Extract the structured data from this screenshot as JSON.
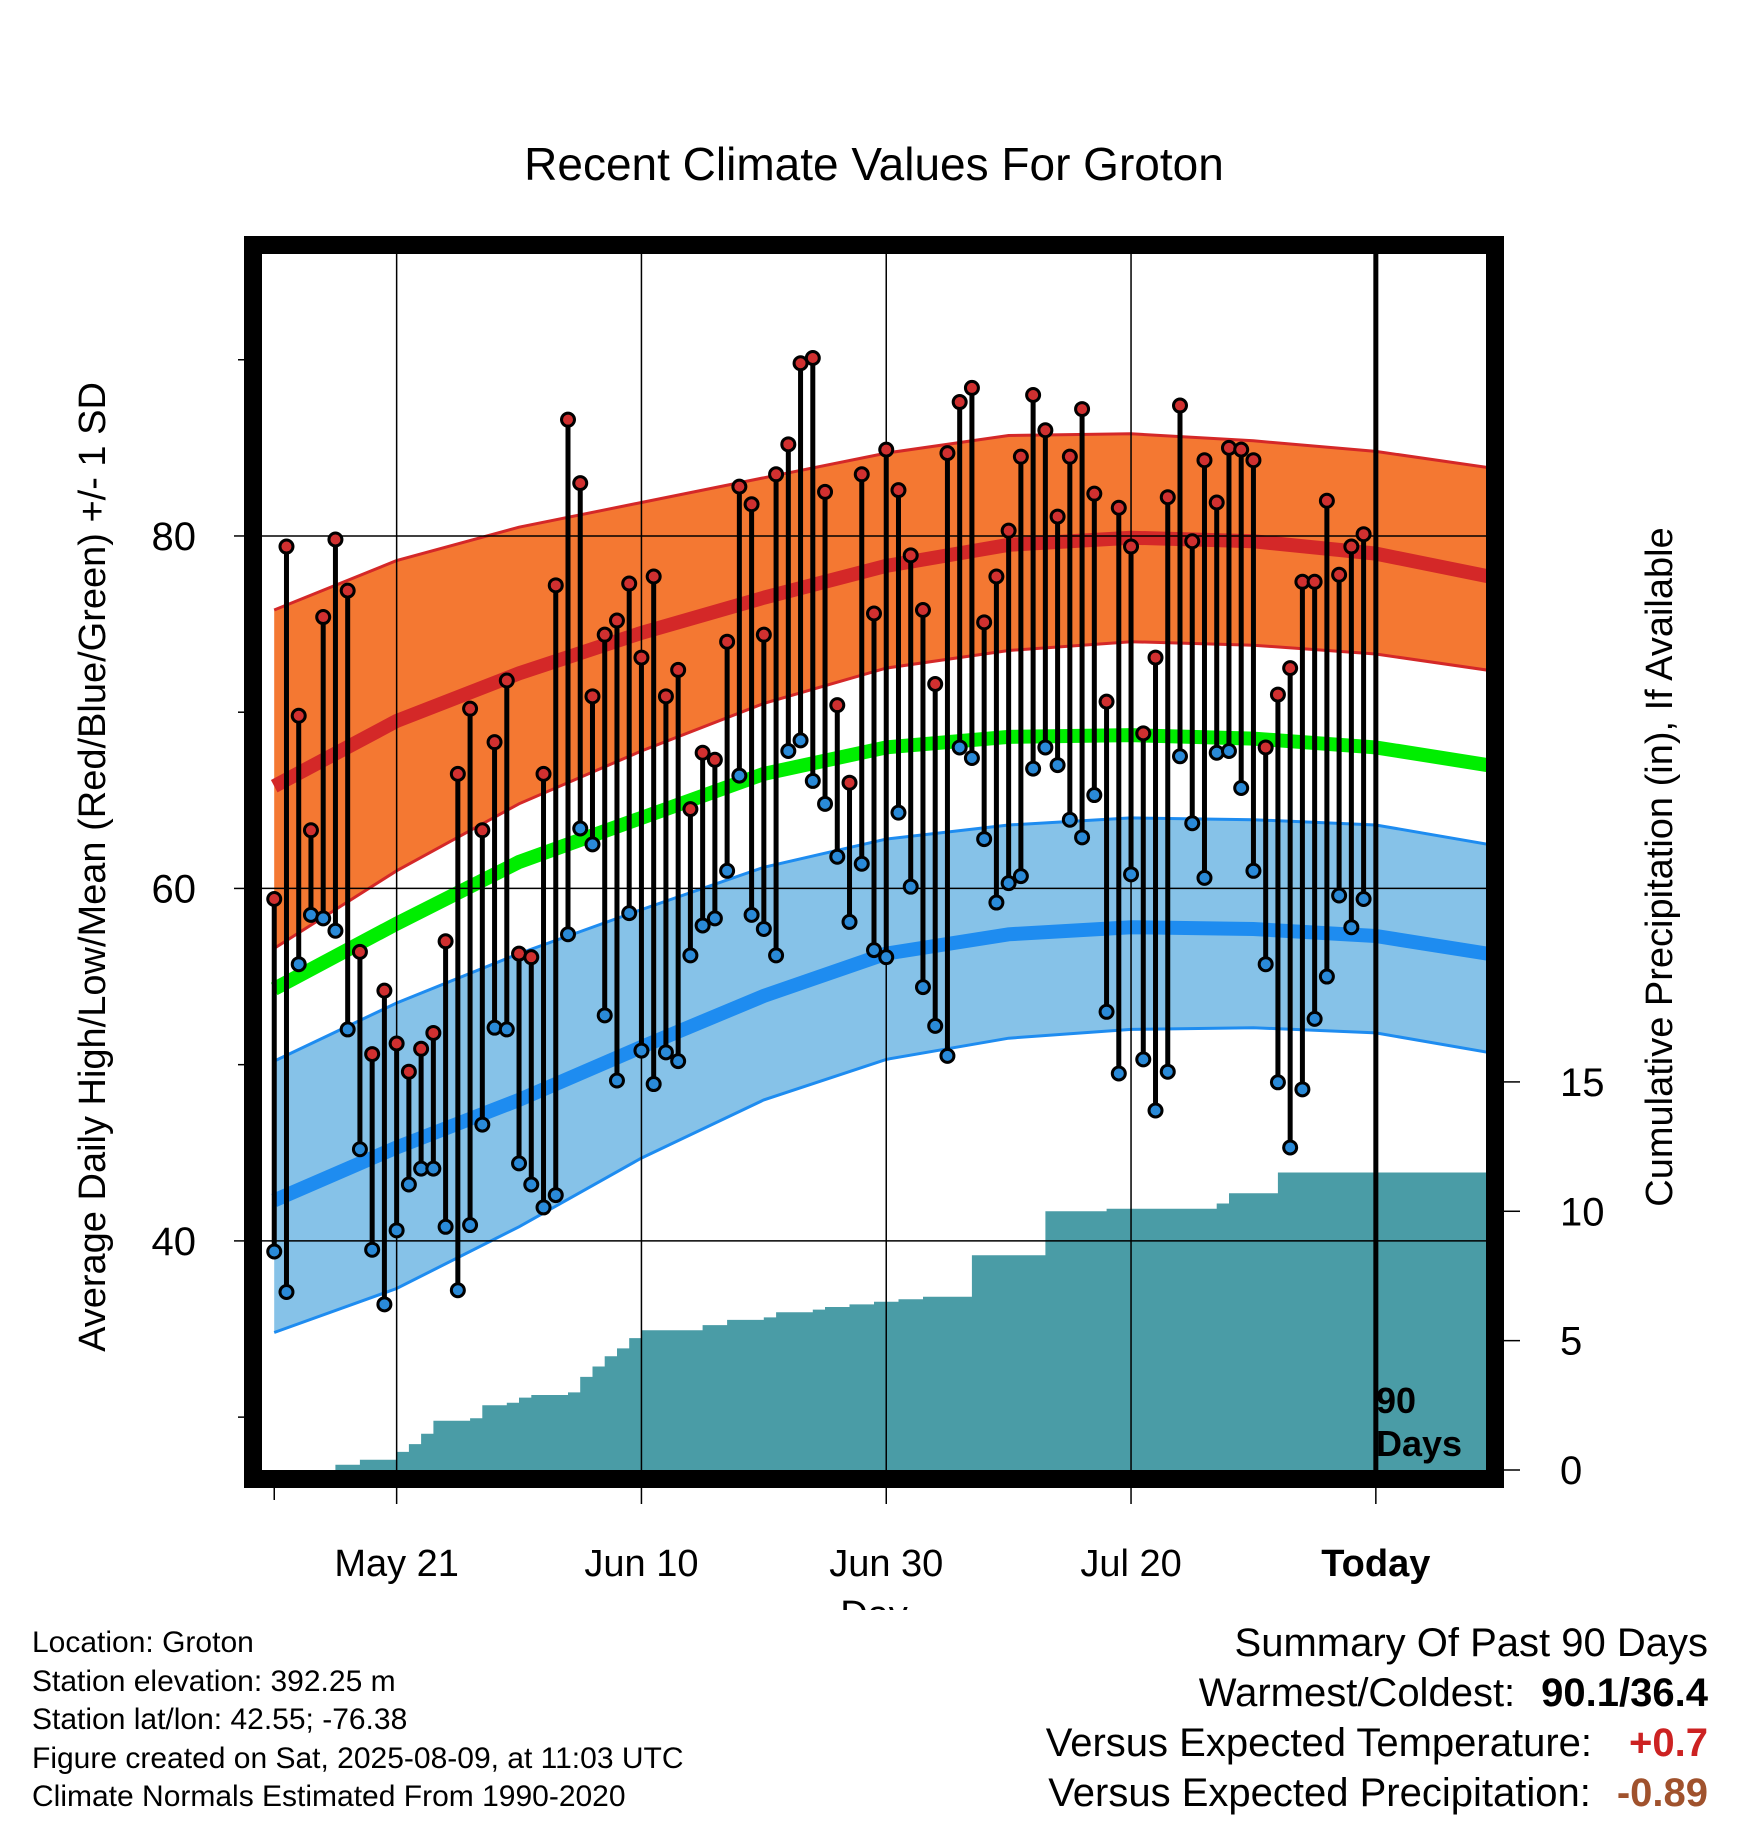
{
  "chart_data": {
    "type": "line",
    "title": "Recent Climate Values For Groton",
    "xlabel": "Day",
    "ylabel": "Average Daily High/Low/Mean (Red/Blue/Green) +/- 1 SD",
    "y2label": "Cumulative Precipitation (in), If Available",
    "x_start": "May 11",
    "today_label": "Today",
    "period_label": [
      "90",
      "Days"
    ],
    "xticks": [
      {
        "day": 10,
        "label": "May 21"
      },
      {
        "day": 30,
        "label": "Jun 10"
      },
      {
        "day": 50,
        "label": "Jun 30"
      },
      {
        "day": 70,
        "label": "Jul 20"
      },
      {
        "day": 90,
        "label": "Today"
      }
    ],
    "xlim": [
      -1,
      99
    ],
    "ylim": [
      27,
      96
    ],
    "y2lim": [
      0,
      47
    ],
    "yticks": [
      40,
      60,
      80
    ],
    "y2ticks": [
      0,
      5,
      10,
      15
    ],
    "grid": true,
    "colors": {
      "high_band": "#f47832",
      "high_mean": "#d42828",
      "low_band": "#86c2e8",
      "low_mean": "#1e8cf0",
      "mean_line": "#00ee00",
      "precip": "#4a9ca6",
      "high_dot": "#d03030",
      "low_dot": "#2a8ad8"
    },
    "normals": {
      "days": [
        0,
        10,
        20,
        30,
        40,
        50,
        60,
        70,
        80,
        90,
        100
      ],
      "high_mean": [
        65.8,
        69.5,
        72.2,
        74.5,
        76.5,
        78.3,
        79.5,
        79.9,
        79.7,
        79.0,
        77.6
      ],
      "high_sd_upper": [
        75.8,
        78.6,
        80.5,
        81.9,
        83.3,
        84.7,
        85.7,
        85.8,
        85.4,
        84.8,
        83.8
      ],
      "high_sd_lower": [
        56.6,
        61.0,
        64.8,
        67.8,
        70.5,
        72.5,
        73.5,
        74.0,
        73.8,
        73.3,
        72.3
      ],
      "mean": [
        54.3,
        58.0,
        61.5,
        64.0,
        66.5,
        68.0,
        68.6,
        68.7,
        68.5,
        68.0,
        66.9
      ],
      "low_mean": [
        42.3,
        45.3,
        48.0,
        51.0,
        53.9,
        56.3,
        57.4,
        57.8,
        57.7,
        57.3,
        56.2
      ],
      "low_sd_upper": [
        50.2,
        53.5,
        56.3,
        58.8,
        61.2,
        62.8,
        63.6,
        64.0,
        63.9,
        63.6,
        62.4
      ],
      "low_sd_lower": [
        34.8,
        37.3,
        40.8,
        44.7,
        48.0,
        50.3,
        51.5,
        52.0,
        52.1,
        51.8,
        50.6
      ]
    },
    "daily": {
      "day": [
        0,
        1,
        2,
        3,
        4,
        5,
        6,
        7,
        8,
        9,
        10,
        11,
        12,
        13,
        14,
        15,
        16,
        17,
        18,
        19,
        20,
        21,
        22,
        23,
        24,
        25,
        26,
        27,
        28,
        29,
        30,
        31,
        32,
        33,
        34,
        35,
        36,
        37,
        38,
        39,
        40,
        41,
        42,
        43,
        44,
        45,
        46,
        47,
        48,
        49,
        50,
        51,
        52,
        53,
        54,
        55,
        56,
        57,
        58,
        59,
        60,
        61,
        62,
        63,
        64,
        65,
        66,
        67,
        68,
        69,
        70,
        71,
        72,
        73,
        74,
        75,
        76,
        77,
        78,
        79,
        80,
        81,
        82,
        83,
        84,
        85,
        86,
        87,
        88,
        89
      ],
      "high": [
        59.4,
        79.4,
        69.8,
        63.3,
        75.4,
        79.8,
        76.9,
        56.4,
        50.6,
        54.2,
        51.2,
        49.6,
        50.9,
        51.8,
        57.0,
        66.5,
        70.2,
        63.3,
        68.3,
        71.8,
        56.3,
        56.1,
        66.5,
        77.2,
        86.6,
        83.0,
        70.9,
        74.4,
        75.2,
        77.3,
        73.1,
        77.7,
        70.9,
        72.4,
        64.5,
        67.7,
        67.3,
        74.0,
        82.8,
        81.8,
        74.4,
        83.5,
        85.2,
        89.8,
        90.1,
        82.5,
        70.4,
        66.0,
        83.5,
        75.6,
        84.9,
        82.6,
        78.9,
        75.8,
        71.6,
        84.7,
        87.6,
        88.4,
        75.1,
        77.7,
        80.3,
        84.5,
        88.0,
        86.0,
        81.1,
        84.5,
        87.2,
        82.4,
        70.6,
        81.6,
        79.4,
        68.8,
        73.1,
        82.2,
        87.4,
        79.7,
        84.3,
        81.9,
        85.0,
        84.9,
        84.3,
        68.0,
        71.0,
        72.5,
        77.4,
        77.4,
        82.0,
        77.8,
        79.4,
        80.1
      ],
      "low": [
        39.4,
        37.1,
        55.7,
        58.5,
        58.3,
        57.6,
        52.0,
        45.2,
        39.5,
        36.4,
        40.6,
        43.2,
        44.1,
        44.1,
        40.8,
        37.2,
        40.9,
        46.6,
        52.1,
        52.0,
        44.4,
        43.2,
        41.9,
        42.6,
        57.4,
        63.4,
        62.5,
        52.8,
        49.1,
        58.6,
        50.8,
        48.9,
        50.7,
        50.2,
        56.2,
        57.9,
        58.3,
        61.0,
        66.4,
        58.5,
        57.7,
        56.2,
        67.8,
        68.4,
        66.1,
        64.8,
        61.8,
        58.1,
        61.4,
        56.5,
        56.1,
        64.3,
        60.1,
        54.4,
        52.2,
        50.5,
        68.0,
        67.4,
        62.8,
        59.2,
        60.3,
        60.7,
        66.8,
        68.0,
        67.0,
        63.9,
        62.9,
        65.3,
        53.0,
        49.5,
        60.8,
        50.3,
        47.4,
        49.6,
        67.5,
        63.7,
        60.6,
        67.7,
        67.8,
        65.7,
        61.0,
        55.7,
        49.0,
        45.3,
        48.6,
        52.6,
        55.0,
        59.6,
        57.8,
        59.4
      ]
    },
    "precip": {
      "day": [
        0,
        4,
        5,
        7,
        9,
        10,
        11,
        12,
        13,
        14,
        15,
        16,
        17,
        18,
        19,
        20,
        21,
        22,
        23,
        24,
        25,
        26,
        27,
        28,
        29,
        30,
        31,
        32,
        33,
        34,
        35,
        36,
        37,
        38,
        39,
        40,
        41,
        42,
        43,
        44,
        45,
        46,
        47,
        48,
        49,
        50,
        51,
        52,
        53,
        54,
        55,
        56,
        57,
        58,
        59,
        60,
        61,
        62,
        63,
        64,
        65,
        66,
        67,
        68,
        69,
        70,
        71,
        72,
        73,
        74,
        75,
        76,
        77,
        78,
        79,
        80,
        81,
        82,
        83,
        84,
        85,
        86,
        87,
        88,
        89,
        90,
        91,
        92,
        93,
        94,
        95,
        96,
        97,
        98,
        99
      ],
      "value": [
        0,
        0,
        0.2,
        0.4,
        0.4,
        0.7,
        1.0,
        1.4,
        1.9,
        1.9,
        1.9,
        2.0,
        2.5,
        2.5,
        2.6,
        2.8,
        2.9,
        2.9,
        2.9,
        3.0,
        3.6,
        4.0,
        4.4,
        4.7,
        5.1,
        5.4,
        5.4,
        5.4,
        5.4,
        5.4,
        5.6,
        5.6,
        5.8,
        5.8,
        5.8,
        5.9,
        6.1,
        6.1,
        6.1,
        6.2,
        6.3,
        6.3,
        6.4,
        6.4,
        6.5,
        6.5,
        6.6,
        6.6,
        6.7,
        6.7,
        6.7,
        6.7,
        8.3,
        8.3,
        8.3,
        8.3,
        8.3,
        8.3,
        10.0,
        10.0,
        10.0,
        10.0,
        10.0,
        10.1,
        10.1,
        10.1,
        10.1,
        10.1,
        10.1,
        10.1,
        10.1,
        10.1,
        10.3,
        10.7,
        10.7,
        10.7,
        10.7,
        11.5,
        11.5,
        11.5,
        11.5,
        11.5,
        11.5,
        11.5,
        11.5,
        11.5,
        11.5,
        11.5,
        11.5,
        11.5,
        11.5,
        11.5,
        11.5,
        11.5,
        11.5
      ]
    }
  },
  "footer": {
    "location": "Location: Groton",
    "elevation": "Station elevation: 392.25 m",
    "latlon": "Station lat/lon: 42.55; -76.38",
    "created": "Figure created on Sat, 2025-08-09, at 11:03 UTC",
    "normals": "Climate Normals Estimated From 1990-2020"
  },
  "summary": {
    "title": "Summary Of Past 90 Days",
    "warmest_coldest_label": "Warmest/Coldest:",
    "warmest_coldest_value": "90.1/36.4",
    "temp_label": "Versus Expected Temperature:",
    "temp_value": "+0.7",
    "precip_label": "Versus Expected Precipitation:",
    "precip_value": "-0.89"
  }
}
